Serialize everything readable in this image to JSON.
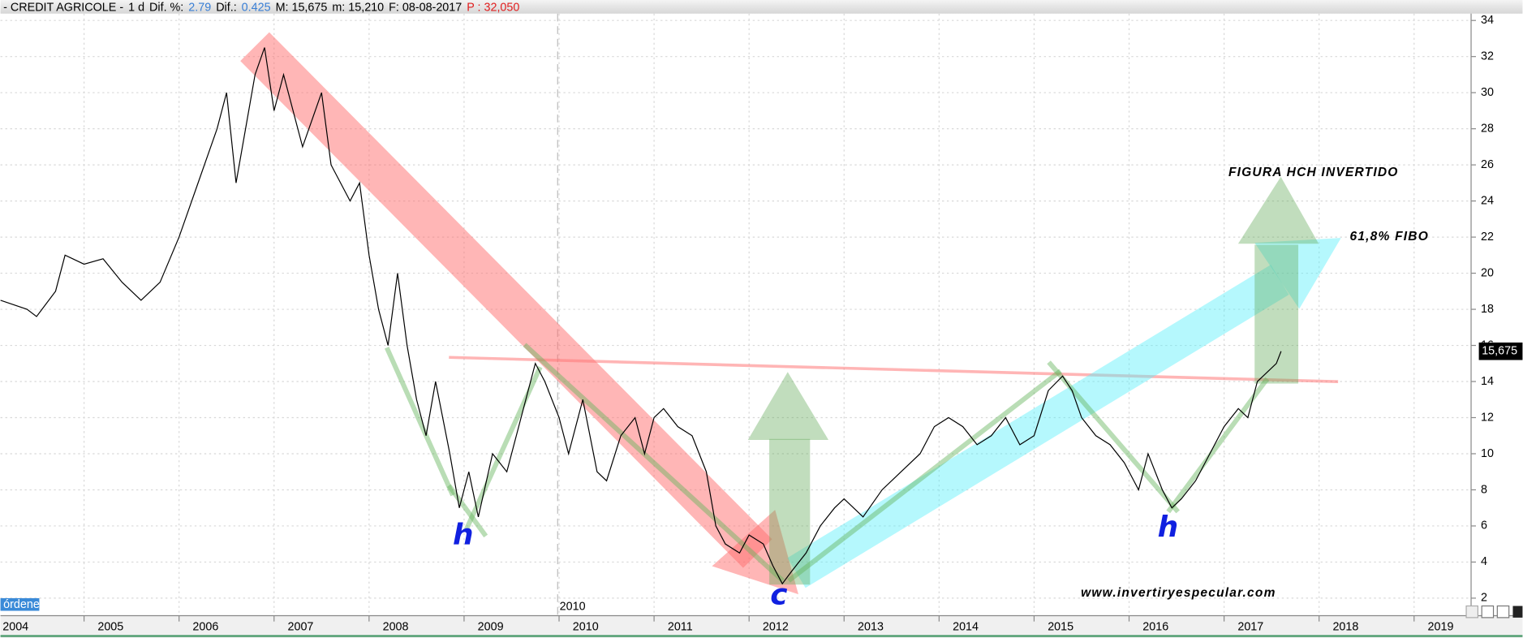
{
  "header": [
    {
      "text": "- CREDIT AGRICOLE -",
      "color": "#000000"
    },
    {
      "text": "1 d",
      "color": "#000000"
    },
    {
      "text": "Dif. %:",
      "color": "#000000"
    },
    {
      "text": "2.79",
      "color": "#3a7fd5"
    },
    {
      "text": "Dif.:",
      "color": "#000000"
    },
    {
      "text": "0.425",
      "color": "#3a7fd5"
    },
    {
      "text": "M: 15,675",
      "color": "#000000"
    },
    {
      "text": "m: 15,210",
      "color": "#000000"
    },
    {
      "text": "F: 08-08-2017",
      "color": "#000000"
    },
    {
      "text": "P : 32,050",
      "color": "#e02020"
    }
  ],
  "chart_data": {
    "type": "line",
    "annotations": {
      "pattern": "FIGURA HCH INVERTIDO",
      "fibo": "61,8% FIBO",
      "site": "www.invertiryespecular.com",
      "left_shoulder": "h",
      "head": "c",
      "right_shoulder": "h",
      "divider": "2010",
      "orders": "órdenes"
    },
    "last_label": "15,675",
    "x": [
      2004.12,
      2004.4,
      2004.5,
      2004.7,
      2004.8,
      2005.0,
      2005.2,
      2005.4,
      2005.6,
      2005.8,
      2006.0,
      2006.2,
      2006.4,
      2006.5,
      2006.6,
      2006.8,
      2006.9,
      2007.0,
      2007.1,
      2007.3,
      2007.5,
      2007.6,
      2007.8,
      2007.9,
      2008.0,
      2008.1,
      2008.2,
      2008.3,
      2008.4,
      2008.5,
      2008.6,
      2008.7,
      2008.85,
      2008.95,
      2009.05,
      2009.15,
      2009.3,
      2009.45,
      2009.6,
      2009.75,
      2009.85,
      2010.0,
      2010.1,
      2010.25,
      2010.4,
      2010.5,
      2010.65,
      2010.8,
      2010.9,
      2011.0,
      2011.1,
      2011.25,
      2011.4,
      2011.55,
      2011.65,
      2011.75,
      2011.9,
      2012.0,
      2012.15,
      2012.25,
      2012.35,
      2012.45,
      2012.6,
      2012.75,
      2012.9,
      2013.0,
      2013.2,
      2013.4,
      2013.6,
      2013.8,
      2013.95,
      2014.1,
      2014.25,
      2014.4,
      2014.55,
      2014.7,
      2014.85,
      2015.0,
      2015.15,
      2015.3,
      2015.4,
      2015.5,
      2015.65,
      2015.8,
      2015.95,
      2016.1,
      2016.2,
      2016.35,
      2016.45,
      2016.55,
      2016.7,
      2016.85,
      2017.0,
      2017.15,
      2017.25,
      2017.35,
      2017.45,
      2017.55,
      2017.6
    ],
    "series": [
      {
        "name": "CREDIT AGRICOLE",
        "color": "#000000",
        "values": [
          18.5,
          18,
          17.6,
          19,
          21,
          20.5,
          20.8,
          19.5,
          18.5,
          19.5,
          22,
          25,
          28,
          30,
          25,
          31,
          32.5,
          29,
          31,
          27,
          30,
          26,
          24,
          25,
          21,
          18,
          16,
          20,
          16,
          13,
          11,
          14,
          10,
          7,
          9,
          6.5,
          10,
          9,
          12,
          15,
          14,
          12,
          10,
          13,
          9,
          8.5,
          11,
          12,
          10,
          12,
          12.5,
          11.5,
          11,
          9,
          6,
          5,
          4.5,
          5.5,
          5,
          3.8,
          2.8,
          3.5,
          4.5,
          6,
          7,
          7.5,
          6.5,
          8,
          9,
          10,
          11.5,
          12,
          11.5,
          10.5,
          11,
          12,
          10.5,
          11,
          13.5,
          14.3,
          13.5,
          12,
          11,
          10.5,
          9.5,
          8,
          10,
          8,
          7,
          7.5,
          8.5,
          10,
          11.5,
          12.5,
          12,
          14,
          14.5,
          15,
          15.675
        ]
      }
    ],
    "xlim": [
      2004.12,
      2019.6
    ],
    "ylim": [
      1.03,
      34.38
    ],
    "xticks": [
      2004,
      2005,
      2006,
      2007,
      2008,
      2009,
      2010,
      2011,
      2012,
      2013,
      2014,
      2015,
      2016,
      2017,
      2018,
      2019
    ],
    "yticks": [
      2,
      4,
      6,
      8,
      10,
      12,
      14,
      16,
      18,
      20,
      22,
      24,
      26,
      28,
      30,
      32,
      34
    ],
    "grid": true
  }
}
